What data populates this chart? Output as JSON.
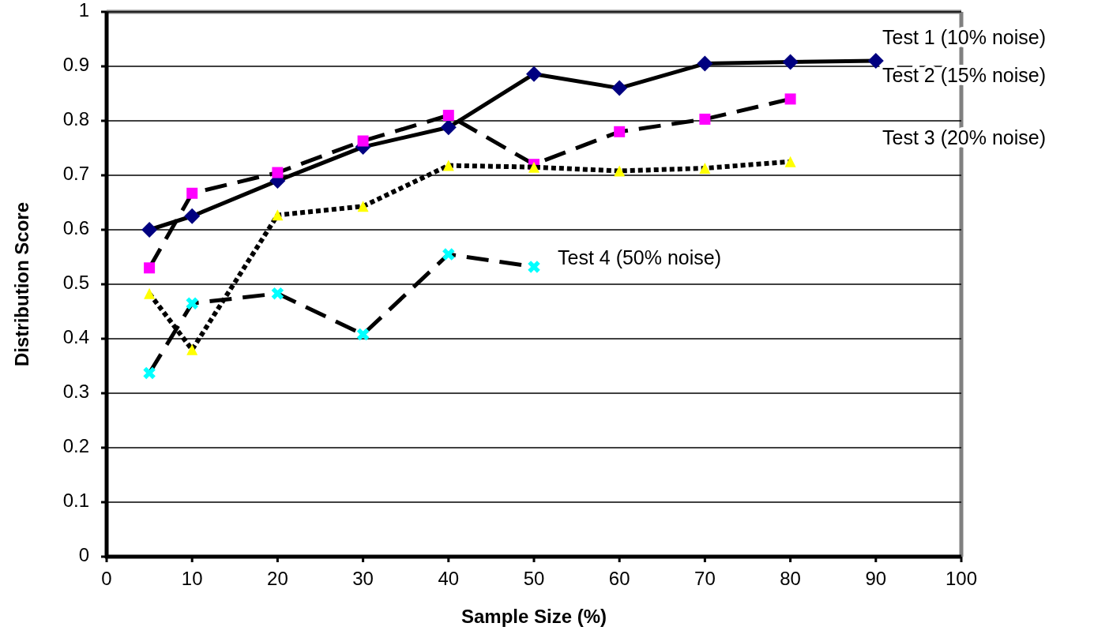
{
  "chart_data": {
    "type": "line",
    "xlabel": "Sample Size (%)",
    "ylabel": "Distribution Score",
    "xlim": [
      0,
      100
    ],
    "xticks": [
      0,
      10,
      20,
      30,
      40,
      50,
      60,
      70,
      80,
      90,
      100
    ],
    "ylim": [
      0,
      1
    ],
    "yticks": [
      0,
      0.1,
      0.2,
      0.3,
      0.4,
      0.5,
      0.6,
      0.7,
      0.8,
      0.9,
      1
    ],
    "grid": "y",
    "series": [
      {
        "name": "Test 1 (10% noise)",
        "color": "#000080",
        "marker": "diamond",
        "line_style": "solid",
        "x": [
          5,
          10,
          20,
          30,
          40,
          50,
          60,
          70,
          80,
          90
        ],
        "values": [
          0.6,
          0.625,
          0.69,
          0.752,
          0.788,
          0.886,
          0.86,
          0.905,
          0.908,
          0.91
        ]
      },
      {
        "name": "Test 2 (15% noise)",
        "color": "#ff00ff",
        "marker": "square",
        "line_style": "dashed",
        "x": [
          5,
          10,
          20,
          30,
          40,
          50,
          60,
          70,
          80
        ],
        "values": [
          0.53,
          0.667,
          0.705,
          0.763,
          0.81,
          0.72,
          0.78,
          0.803,
          0.84
        ]
      },
      {
        "name": "Test 3 (20% noise)",
        "color": "#ffff00",
        "marker": "triangle",
        "line_style": "dotted",
        "x": [
          5,
          10,
          20,
          30,
          40,
          50,
          60,
          70,
          80
        ],
        "values": [
          0.483,
          0.38,
          0.627,
          0.643,
          0.718,
          0.715,
          0.708,
          0.713,
          0.725
        ]
      },
      {
        "name": "Test 4 (50% noise)",
        "color": "#00ffff",
        "marker": "cross",
        "line_style": "dashed",
        "x": [
          5,
          10,
          20,
          30,
          40,
          50
        ],
        "values": [
          0.337,
          0.465,
          0.483,
          0.408,
          0.555,
          0.532
        ]
      }
    ]
  }
}
